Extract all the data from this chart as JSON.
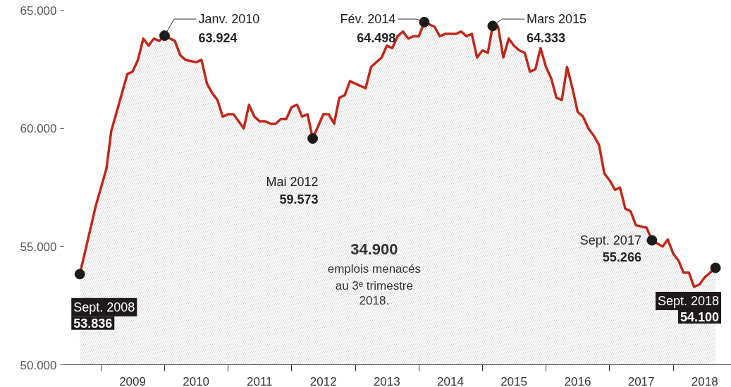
{
  "chart_data": {
    "type": "area",
    "color": "#c0281a",
    "x": [
      "2008-09",
      "2008-12",
      "2009-01",
      "2009-02",
      "2009-03",
      "2009-04",
      "2009-06",
      "2009-07",
      "2009-08",
      "2009-09",
      "2009-10",
      "2009-11",
      "2009-12",
      "2010-01",
      "2010-03",
      "2010-04",
      "2010-05",
      "2010-07",
      "2010-08",
      "2010-09",
      "2010-10",
      "2010-11",
      "2010-12",
      "2011-01",
      "2011-02",
      "2011-04",
      "2011-05",
      "2011-06",
      "2011-07",
      "2011-08",
      "2011-09",
      "2011-10",
      "2011-11",
      "2011-12",
      "2012-01",
      "2012-02",
      "2012-03",
      "2012-04",
      "2012-05",
      "2012-07",
      "2012-08",
      "2012-09",
      "2012-10",
      "2012-11",
      "2012-12",
      "2013-03",
      "2013-04",
      "2013-06",
      "2013-07",
      "2013-08",
      "2013-09",
      "2013-10",
      "2013-11",
      "2013-12",
      "2014-01",
      "2014-02",
      "2014-04",
      "2014-05",
      "2014-06",
      "2014-08",
      "2014-09",
      "2014-10",
      "2014-11",
      "2014-12",
      "2015-01",
      "2015-02",
      "2015-03",
      "2015-04",
      "2015-05",
      "2015-06",
      "2015-07",
      "2015-08",
      "2015-09",
      "2015-10",
      "2015-11",
      "2015-12",
      "2016-01",
      "2016-02",
      "2016-03",
      "2016-04",
      "2016-05",
      "2016-06",
      "2016-07",
      "2016-08",
      "2016-09",
      "2016-10",
      "2016-11",
      "2016-12",
      "2017-01",
      "2017-02",
      "2017-03",
      "2017-04",
      "2017-05",
      "2017-06",
      "2017-08",
      "2017-09",
      "2017-11",
      "2017-12",
      "2018-01",
      "2018-02",
      "2018-03",
      "2018-04",
      "2018-05",
      "2018-06",
      "2018-07",
      "2018-08",
      "2018-09"
    ],
    "values": [
      53836,
      56700,
      57500,
      58300,
      59900,
      60700,
      62300,
      62400,
      62900,
      63800,
      63500,
      63800,
      63700,
      63924,
      63700,
      63100,
      62900,
      62800,
      62900,
      61900,
      61500,
      61200,
      60500,
      60600,
      60600,
      60000,
      61000,
      60500,
      60300,
      60300,
      60200,
      60200,
      60400,
      60400,
      60900,
      61000,
      60500,
      60600,
      59573,
      60600,
      60600,
      60200,
      61300,
      61400,
      62000,
      61700,
      62600,
      63000,
      63500,
      63400,
      63900,
      64100,
      63800,
      63900,
      63900,
      64498,
      64300,
      63900,
      64000,
      64000,
      64100,
      63900,
      64000,
      63000,
      63300,
      63200,
      64333,
      64300,
      63000,
      63800,
      63500,
      63300,
      63200,
      62400,
      62500,
      63400,
      62600,
      62100,
      61300,
      61200,
      62600,
      61700,
      60700,
      60500,
      60000,
      59700,
      59300,
      58100,
      57800,
      57400,
      57500,
      56600,
      56500,
      55900,
      55800,
      55266,
      55000,
      55300,
      54700,
      54400,
      53900,
      53900,
      53300,
      53400,
      53700,
      53900,
      54100
    ],
    "xlim": [
      "2008-06",
      "2018-12"
    ],
    "xticks": [
      {
        "value": "2009-01",
        "label": null
      },
      {
        "value": "2009-07",
        "label": "2009"
      },
      {
        "value": "2010-01",
        "label": null
      },
      {
        "value": "2010-07",
        "label": "2010"
      },
      {
        "value": "2011-01",
        "label": null
      },
      {
        "value": "2011-07",
        "label": "2011"
      },
      {
        "value": "2012-01",
        "label": null
      },
      {
        "value": "2012-07",
        "label": "2012"
      },
      {
        "value": "2013-01",
        "label": null
      },
      {
        "value": "2013-07",
        "label": "2013"
      },
      {
        "value": "2014-01",
        "label": null
      },
      {
        "value": "2014-07",
        "label": "2014"
      },
      {
        "value": "2015-01",
        "label": null
      },
      {
        "value": "2015-07",
        "label": "2015"
      },
      {
        "value": "2016-01",
        "label": null
      },
      {
        "value": "2016-07",
        "label": "2016"
      },
      {
        "value": "2017-01",
        "label": null
      },
      {
        "value": "2017-07",
        "label": "2017"
      },
      {
        "value": "2018-01",
        "label": null
      },
      {
        "value": "2018-07",
        "label": "2018"
      }
    ],
    "ylim": [
      50000,
      65000
    ],
    "yticks": [
      {
        "value": 50000,
        "label": "50.000"
      },
      {
        "value": 55000,
        "label": "55.000"
      },
      {
        "value": 60000,
        "label": "60.000"
      },
      {
        "value": 65000,
        "label": "65.000"
      }
    ],
    "grid": false,
    "annotations": [
      {
        "text": "Sept. 2008\n53.836",
        "x": "2008-09",
        "y": 53836
      },
      {
        "text": "Janv. 2010\n63.924",
        "x": "2010-01",
        "y": 63924
      },
      {
        "text": "Mai 2012\n59.573",
        "x": "2012-05",
        "y": 59573
      },
      {
        "text": "Fév. 2014\n64.498",
        "x": "2014-02",
        "y": 64498
      },
      {
        "text": "Mars 2015\n64.333",
        "x": "2015-03",
        "y": 64333
      },
      {
        "text": "Sept. 2017\n55.266",
        "x": "2017-09",
        "y": 55266
      },
      {
        "text": "Sept. 2018\n54.100",
        "x": "2018-09",
        "y": 54100
      },
      "34.900\nemplois menacés\nau 3ᵉ trimestre\n2018."
    ]
  }
}
